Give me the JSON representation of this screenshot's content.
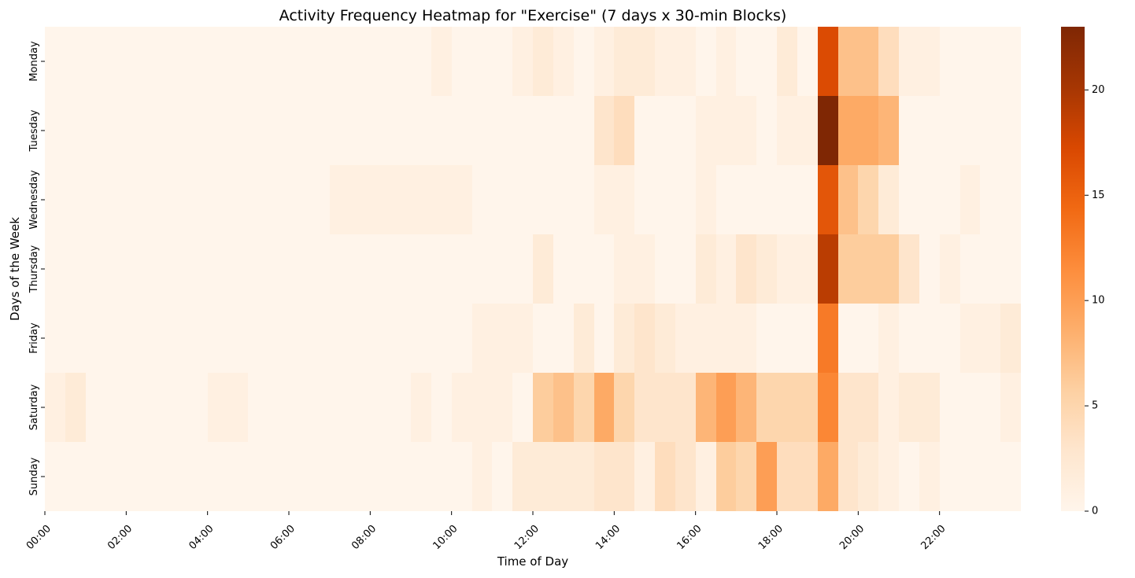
{
  "chart_data": {
    "type": "heatmap",
    "title": "Activity Frequency Heatmap for \"Exercise\" (7 days x 30-min Blocks)",
    "xlabel": "Time of Day",
    "ylabel": "Days of the Week",
    "days": [
      "Monday",
      "Tuesday",
      "Wednesday",
      "Thursday",
      "Friday",
      "Saturday",
      "Sunday"
    ],
    "x_tick_labels": [
      "00:00",
      "02:00",
      "04:00",
      "06:00",
      "08:00",
      "10:00",
      "12:00",
      "14:00",
      "16:00",
      "18:00",
      "20:00",
      "22:00"
    ],
    "x_tick_blocks": [
      0,
      4,
      8,
      12,
      16,
      20,
      24,
      28,
      32,
      36,
      40,
      44
    ],
    "colorbar": {
      "min": 0,
      "max": 23,
      "ticks": [
        0,
        5,
        10,
        15,
        20
      ]
    },
    "colormap": [
      "#fff5eb",
      "#fee6ce",
      "#fdd0a2",
      "#fdae6b",
      "#fd8d3c",
      "#f16913",
      "#d94801",
      "#a63603",
      "#7f2704"
    ],
    "values": [
      [
        0,
        0,
        0,
        0,
        0,
        0,
        0,
        0,
        0,
        0,
        0,
        0,
        0,
        0,
        0,
        0,
        0,
        0,
        0,
        1,
        0,
        0,
        0,
        1,
        2,
        1,
        0,
        1,
        2,
        2,
        1,
        1,
        0,
        1,
        0,
        0,
        2,
        0,
        17,
        7,
        7,
        4,
        1,
        1,
        0,
        0,
        0,
        0
      ],
      [
        0,
        0,
        0,
        0,
        0,
        0,
        0,
        0,
        0,
        0,
        0,
        0,
        0,
        0,
        0,
        0,
        0,
        0,
        0,
        0,
        0,
        0,
        0,
        0,
        0,
        0,
        0,
        3,
        4,
        0,
        0,
        0,
        1,
        1,
        1,
        0,
        1,
        1,
        23,
        9,
        9,
        8,
        0,
        0,
        0,
        0,
        0,
        0
      ],
      [
        0,
        0,
        0,
        0,
        0,
        0,
        0,
        0,
        0,
        0,
        0,
        0,
        0,
        0,
        1,
        1,
        1,
        1,
        1,
        1,
        1,
        0,
        0,
        0,
        0,
        0,
        0,
        1,
        1,
        0,
        0,
        0,
        1,
        0,
        0,
        0,
        0,
        0,
        16,
        7,
        5,
        2,
        0,
        0,
        0,
        1,
        0,
        0
      ],
      [
        0,
        0,
        0,
        0,
        0,
        0,
        0,
        0,
        0,
        0,
        0,
        0,
        0,
        0,
        0,
        0,
        0,
        0,
        0,
        0,
        0,
        0,
        0,
        0,
        2,
        0,
        0,
        0,
        1,
        1,
        0,
        0,
        2,
        1,
        3,
        2,
        1,
        1,
        19,
        6,
        6,
        6,
        3,
        0,
        1,
        0,
        0,
        0
      ],
      [
        0,
        0,
        0,
        0,
        0,
        0,
        0,
        0,
        0,
        0,
        0,
        0,
        0,
        0,
        0,
        0,
        0,
        0,
        0,
        0,
        0,
        1,
        1,
        1,
        0,
        0,
        2,
        0,
        2,
        3,
        2,
        1,
        1,
        1,
        1,
        0,
        0,
        0,
        13,
        0,
        0,
        1,
        0,
        0,
        0,
        1,
        1,
        2
      ],
      [
        1,
        2,
        0,
        0,
        0,
        0,
        0,
        0,
        1,
        1,
        0,
        0,
        0,
        0,
        0,
        0,
        0,
        0,
        1,
        0,
        1,
        1,
        1,
        0,
        6,
        7,
        5,
        9,
        5,
        3,
        3,
        3,
        8,
        10,
        8,
        5,
        5,
        5,
        12,
        3,
        3,
        1,
        2,
        2,
        0,
        0,
        0,
        1
      ],
      [
        0,
        0,
        0,
        0,
        0,
        0,
        0,
        0,
        0,
        0,
        0,
        0,
        0,
        0,
        0,
        0,
        0,
        0,
        0,
        0,
        0,
        1,
        0,
        2,
        2,
        2,
        2,
        3,
        3,
        1,
        4,
        3,
        1,
        6,
        5,
        10,
        4,
        4,
        9,
        3,
        2,
        1,
        0,
        1,
        0,
        0,
        0,
        0
      ]
    ]
  }
}
